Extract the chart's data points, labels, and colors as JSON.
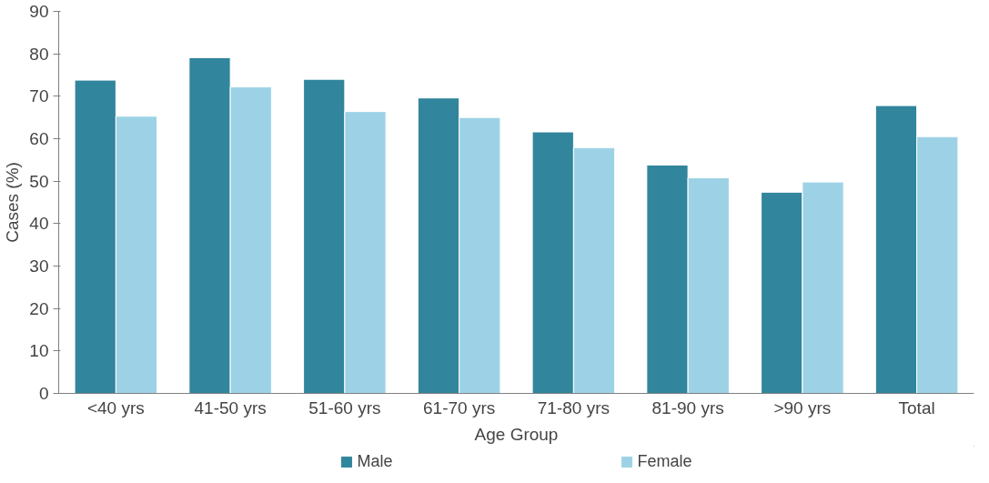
{
  "chart_data": {
    "type": "bar",
    "xlabel": "Age Group",
    "ylabel": "Cases (%)",
    "categories": [
      "<40 yrs",
      "41-50 yrs",
      "51-60 yrs",
      "61-70 yrs",
      "71-80 yrs",
      "81-90 yrs",
      ">90 yrs",
      "Total"
    ],
    "series": [
      {
        "name": "Male",
        "color": "#31859c",
        "values": [
          73.8,
          79.1,
          74.0,
          69.6,
          61.6,
          53.8,
          47.4,
          67.8
        ]
      },
      {
        "name": "Female",
        "color": "#9dd2e6",
        "values": [
          65.3,
          72.2,
          66.4,
          65.0,
          57.9,
          50.8,
          49.8,
          60.5
        ]
      }
    ],
    "ylim": [
      0,
      90
    ],
    "yticks": [
      0,
      10,
      20,
      30,
      40,
      50,
      60,
      70,
      80,
      90
    ],
    "grid": false,
    "legend": "bottom"
  }
}
